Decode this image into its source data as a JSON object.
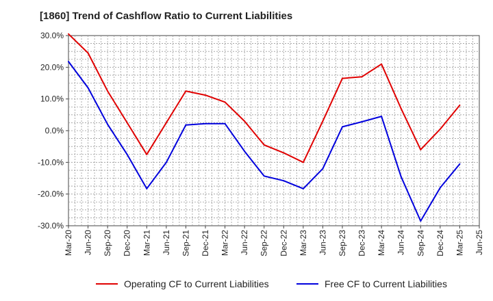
{
  "chart_data": {
    "type": "line",
    "title": "[1860]  Trend of Cashflow Ratio to Current Liabilities",
    "xlabel": "",
    "ylabel": "",
    "ylim": [
      -30,
      30
    ],
    "yticks": [
      30,
      20,
      10,
      0,
      -10,
      -20,
      -30
    ],
    "ytick_labels": [
      "30.0%",
      "20.0%",
      "10.0%",
      "0.0%",
      "-10.0%",
      "-20.0%",
      "-30.0%"
    ],
    "x": [
      "Mar-20",
      "Jun-20",
      "Sep-20",
      "Dec-20",
      "Mar-21",
      "Jun-21",
      "Sep-21",
      "Dec-21",
      "Mar-22",
      "Jun-22",
      "Sep-22",
      "Dec-22",
      "Mar-23",
      "Jun-23",
      "Sep-23",
      "Dec-23",
      "Mar-24",
      "Jun-24",
      "Sep-24",
      "Dec-24",
      "Mar-25",
      "Jun-25"
    ],
    "grid": true,
    "legend": "bottom",
    "series": [
      {
        "name": "Operating CF to Current Liabilities",
        "color": "#e00000",
        "values": [
          30.5,
          24.5,
          12.5,
          2.5,
          -7.5,
          2.5,
          12.5,
          11.2,
          9.0,
          3.0,
          -4.5,
          -7.0,
          -10.0,
          3.0,
          16.5,
          17.0,
          21.0,
          7.0,
          -6.0,
          0.5,
          8.0,
          null
        ]
      },
      {
        "name": "Free CF to Current Liabilities",
        "color": "#0000dd",
        "values": [
          21.8,
          13.5,
          2.0,
          -7.5,
          -18.3,
          -10.0,
          1.8,
          2.2,
          2.2,
          -6.5,
          -14.3,
          -15.8,
          -18.3,
          -12.0,
          1.2,
          2.8,
          4.5,
          -14.5,
          -28.5,
          -18.0,
          -10.5,
          null
        ]
      }
    ]
  }
}
